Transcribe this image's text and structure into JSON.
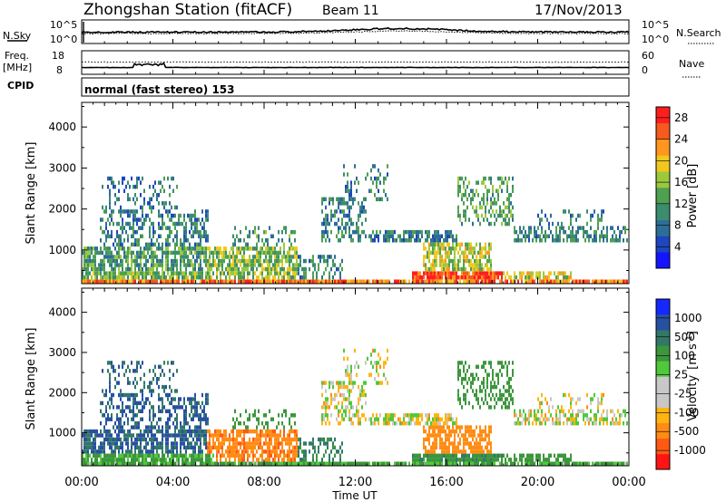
{
  "header": {
    "station": "Zhongshan Station (fitACF)",
    "beam": "Beam 11",
    "date": "17/Nov/2013"
  },
  "small_panels": {
    "nsky_label": "N.Sky",
    "nsky_ticks": [
      "10^5",
      "10^0"
    ],
    "nsearch_label": "N.Search",
    "nsearch_ticks": [
      "10^5",
      "10^0"
    ],
    "freq_label_1": "Freq.",
    "freq_label_2": "[MHz]",
    "freq_ticks": [
      "18",
      "8"
    ],
    "nave_label": "Nave",
    "nave_ticks": [
      "60",
      "0"
    ],
    "cpid_label": "CPID",
    "cpid_text": "normal (fast stereo) 153"
  },
  "colors": {
    "power_scale": [
      "#1414ff",
      "#1e46be",
      "#2e6e96",
      "#3c8c6e",
      "#4fa050",
      "#9cc83c",
      "#f0c81e",
      "#ff961e",
      "#f55a1e",
      "#ff1e1e"
    ],
    "velocity_scale": [
      "#ff1414",
      "#ff5a14",
      "#ff8c14",
      "#ffb414",
      "#c8c8c8",
      "#c8c8c8",
      "#50c83c",
      "#3c963c",
      "#327868",
      "#2850a0",
      "#1428ff"
    ]
  },
  "chart_data": [
    {
      "type": "heatmap",
      "name": "power",
      "ylabel": "Slant Range [km]",
      "y_ticks": [
        1000,
        2000,
        3000,
        4000
      ],
      "ylim": [
        180,
        4600
      ],
      "x_ticks": [
        "00:00",
        "04:00",
        "08:00",
        "12:00",
        "16:00",
        "20:00",
        "00:00"
      ],
      "xlim_hours": [
        0,
        24
      ],
      "colorbar": {
        "label": "Power [dB]",
        "ticks": [
          "4",
          "8",
          "12",
          "16",
          "20",
          "24",
          "28"
        ],
        "range": [
          0,
          30
        ]
      }
    },
    {
      "type": "heatmap",
      "name": "velocity",
      "ylabel": "Slant Range [km]",
      "y_ticks": [
        1000,
        2000,
        3000,
        4000
      ],
      "ylim": [
        180,
        4600
      ],
      "x_ticks": [
        "00:00",
        "04:00",
        "08:00",
        "12:00",
        "16:00",
        "20:00",
        "00:00"
      ],
      "xlim_hours": [
        0,
        24
      ],
      "xlabel": "Time UT",
      "colorbar": {
        "label": "Velocity",
        "unit": "[m s",
        "unit_exp": "-1",
        "unit_close": "]",
        "ticks": [
          "1000",
          "500",
          "100",
          "25",
          "-25",
          "-100",
          "-500",
          "-1000"
        ]
      }
    }
  ]
}
